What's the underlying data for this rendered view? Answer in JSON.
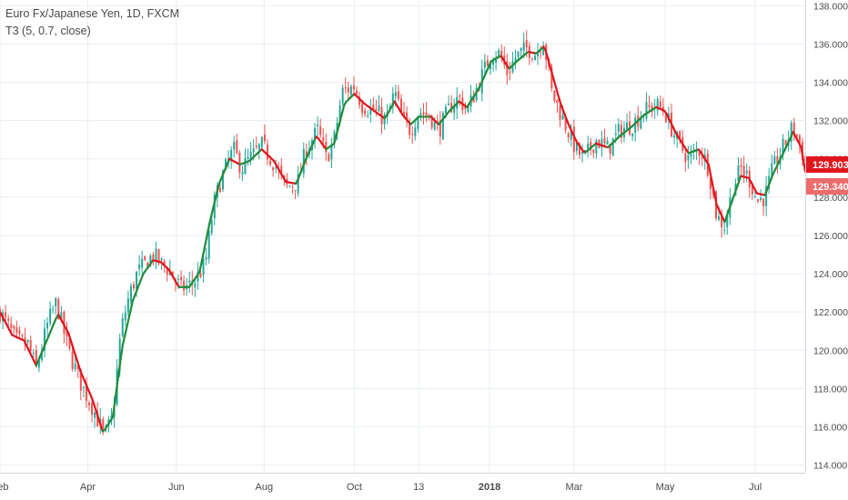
{
  "legend": {
    "symbol_line": "Euro Fx/Japanese Yen, 1D, FXCM",
    "indicator_line": "T3 (5, 0.7, close)"
  },
  "price_labels": {
    "last_close": "129.903",
    "t3_value": "129.340"
  },
  "colors": {
    "up_candle": "#26a69a",
    "down_candle": "#ef5350",
    "t3_rising": "#1f8c3a",
    "t3_falling": "#e0161d",
    "grid": "#e8eef3",
    "axis_text": "#4a4a4a",
    "badge_close": "#e0161d",
    "badge_t3": "#ef6b6b"
  },
  "chart_data": {
    "type": "candlestick",
    "title": "Euro Fx/Japanese Yen, 1D, FXCM",
    "indicator": "T3 (5, 0.7, close)",
    "ylim": [
      113.6,
      138.3
    ],
    "y_ticks": [
      "114.000",
      "116.000",
      "118.000",
      "120.000",
      "122.000",
      "124.000",
      "126.000",
      "128.000",
      "130.000",
      "132.000",
      "134.000",
      "136.000",
      "138.000"
    ],
    "x_ticks": [
      {
        "label": "Feb",
        "t": 0.0,
        "bold": false
      },
      {
        "label": "Apr",
        "t": 0.109,
        "bold": false
      },
      {
        "label": "Jun",
        "t": 0.219,
        "bold": false
      },
      {
        "label": "Aug",
        "t": 0.328,
        "bold": false
      },
      {
        "label": "Oct",
        "t": 0.44,
        "bold": false
      },
      {
        "label": "13",
        "t": 0.52,
        "bold": false
      },
      {
        "label": "2018",
        "t": 0.608,
        "bold": true
      },
      {
        "label": "Mar",
        "t": 0.713,
        "bold": false
      },
      {
        "label": "May",
        "t": 0.826,
        "bold": false
      },
      {
        "label": "Jul",
        "t": 0.938,
        "bold": false
      }
    ],
    "close_path": [
      [
        0.0,
        122.0
      ],
      [
        0.02,
        120.5
      ],
      [
        0.035,
        120.3
      ],
      [
        0.045,
        119.0
      ],
      [
        0.06,
        121.5
      ],
      [
        0.07,
        122.5
      ],
      [
        0.085,
        120.0
      ],
      [
        0.1,
        118.3
      ],
      [
        0.115,
        117.0
      ],
      [
        0.13,
        115.5
      ],
      [
        0.14,
        116.5
      ],
      [
        0.15,
        121.0
      ],
      [
        0.16,
        122.8
      ],
      [
        0.17,
        124.0
      ],
      [
        0.18,
        124.5
      ],
      [
        0.19,
        125.0
      ],
      [
        0.2,
        124.5
      ],
      [
        0.21,
        124.2
      ],
      [
        0.225,
        123.2
      ],
      [
        0.24,
        123.5
      ],
      [
        0.255,
        124.5
      ],
      [
        0.265,
        127.5
      ],
      [
        0.275,
        129.0
      ],
      [
        0.29,
        130.5
      ],
      [
        0.3,
        129.5
      ],
      [
        0.31,
        130.0
      ],
      [
        0.325,
        130.7
      ],
      [
        0.34,
        129.8
      ],
      [
        0.355,
        128.5
      ],
      [
        0.37,
        128.8
      ],
      [
        0.38,
        130.5
      ],
      [
        0.395,
        131.5
      ],
      [
        0.405,
        130.0
      ],
      [
        0.415,
        131.0
      ],
      [
        0.425,
        133.5
      ],
      [
        0.44,
        133.8
      ],
      [
        0.45,
        132.8
      ],
      [
        0.465,
        132.5
      ],
      [
        0.48,
        132.0
      ],
      [
        0.49,
        133.5
      ],
      [
        0.5,
        132.0
      ],
      [
        0.51,
        131.5
      ],
      [
        0.52,
        132.5
      ],
      [
        0.535,
        132.2
      ],
      [
        0.545,
        131.5
      ],
      [
        0.56,
        132.8
      ],
      [
        0.57,
        133.2
      ],
      [
        0.58,
        132.5
      ],
      [
        0.595,
        134.0
      ],
      [
        0.61,
        135.5
      ],
      [
        0.62,
        135.5
      ],
      [
        0.63,
        134.5
      ],
      [
        0.64,
        135.3
      ],
      [
        0.655,
        135.8
      ],
      [
        0.665,
        135.5
      ],
      [
        0.675,
        136.3
      ],
      [
        0.685,
        133.5
      ],
      [
        0.695,
        132.5
      ],
      [
        0.705,
        131.5
      ],
      [
        0.715,
        130.5
      ],
      [
        0.725,
        130.0
      ],
      [
        0.74,
        131.0
      ],
      [
        0.755,
        130.5
      ],
      [
        0.77,
        131.5
      ],
      [
        0.785,
        131.8
      ],
      [
        0.8,
        132.5
      ],
      [
        0.815,
        132.8
      ],
      [
        0.825,
        132.5
      ],
      [
        0.84,
        131.0
      ],
      [
        0.855,
        130.0
      ],
      [
        0.87,
        130.5
      ],
      [
        0.88,
        129.5
      ],
      [
        0.89,
        127.0
      ],
      [
        0.9,
        126.5
      ],
      [
        0.91,
        128.5
      ],
      [
        0.92,
        129.5
      ],
      [
        0.93,
        129.0
      ],
      [
        0.94,
        127.8
      ],
      [
        0.95,
        128.0
      ],
      [
        0.96,
        129.5
      ],
      [
        0.975,
        130.8
      ],
      [
        0.985,
        131.7
      ],
      [
        0.995,
        130.5
      ],
      [
        1.0,
        129.9
      ]
    ],
    "t3_path": [
      [
        0.0,
        122.0
      ],
      [
        0.015,
        120.8
      ],
      [
        0.03,
        120.5
      ],
      [
        0.045,
        119.2
      ],
      [
        0.06,
        120.7
      ],
      [
        0.072,
        121.9
      ],
      [
        0.085,
        120.9
      ],
      [
        0.1,
        118.9
      ],
      [
        0.115,
        117.4
      ],
      [
        0.128,
        115.7
      ],
      [
        0.14,
        116.5
      ],
      [
        0.152,
        120.2
      ],
      [
        0.165,
        122.6
      ],
      [
        0.178,
        124.0
      ],
      [
        0.19,
        124.7
      ],
      [
        0.2,
        124.6
      ],
      [
        0.21,
        124.2
      ],
      [
        0.222,
        123.3
      ],
      [
        0.235,
        123.3
      ],
      [
        0.248,
        124.1
      ],
      [
        0.26,
        126.6
      ],
      [
        0.272,
        128.7
      ],
      [
        0.285,
        130.0
      ],
      [
        0.298,
        129.7
      ],
      [
        0.31,
        129.9
      ],
      [
        0.325,
        130.5
      ],
      [
        0.34,
        129.9
      ],
      [
        0.355,
        128.8
      ],
      [
        0.368,
        128.7
      ],
      [
        0.38,
        130.0
      ],
      [
        0.393,
        131.2
      ],
      [
        0.405,
        130.5
      ],
      [
        0.415,
        130.8
      ],
      [
        0.428,
        132.9
      ],
      [
        0.44,
        133.4
      ],
      [
        0.452,
        132.9
      ],
      [
        0.465,
        132.5
      ],
      [
        0.478,
        132.1
      ],
      [
        0.49,
        133.0
      ],
      [
        0.5,
        132.3
      ],
      [
        0.51,
        131.8
      ],
      [
        0.52,
        132.2
      ],
      [
        0.535,
        132.2
      ],
      [
        0.545,
        131.8
      ],
      [
        0.558,
        132.5
      ],
      [
        0.57,
        133.0
      ],
      [
        0.58,
        132.7
      ],
      [
        0.595,
        133.7
      ],
      [
        0.61,
        135.1
      ],
      [
        0.622,
        135.4
      ],
      [
        0.632,
        134.7
      ],
      [
        0.642,
        135.1
      ],
      [
        0.656,
        135.6
      ],
      [
        0.666,
        135.5
      ],
      [
        0.676,
        135.9
      ],
      [
        0.686,
        134.4
      ],
      [
        0.696,
        132.9
      ],
      [
        0.706,
        131.8
      ],
      [
        0.716,
        130.9
      ],
      [
        0.726,
        130.3
      ],
      [
        0.74,
        130.8
      ],
      [
        0.755,
        130.6
      ],
      [
        0.77,
        131.2
      ],
      [
        0.785,
        131.7
      ],
      [
        0.8,
        132.3
      ],
      [
        0.815,
        132.7
      ],
      [
        0.826,
        132.5
      ],
      [
        0.84,
        131.3
      ],
      [
        0.855,
        130.3
      ],
      [
        0.868,
        130.5
      ],
      [
        0.88,
        129.7
      ],
      [
        0.89,
        127.6
      ],
      [
        0.9,
        126.7
      ],
      [
        0.91,
        127.9
      ],
      [
        0.92,
        129.1
      ],
      [
        0.93,
        129.0
      ],
      [
        0.94,
        128.2
      ],
      [
        0.95,
        128.1
      ],
      [
        0.96,
        129.2
      ],
      [
        0.975,
        130.5
      ],
      [
        0.985,
        131.4
      ],
      [
        0.995,
        130.6
      ],
      [
        1.0,
        129.34
      ]
    ]
  }
}
